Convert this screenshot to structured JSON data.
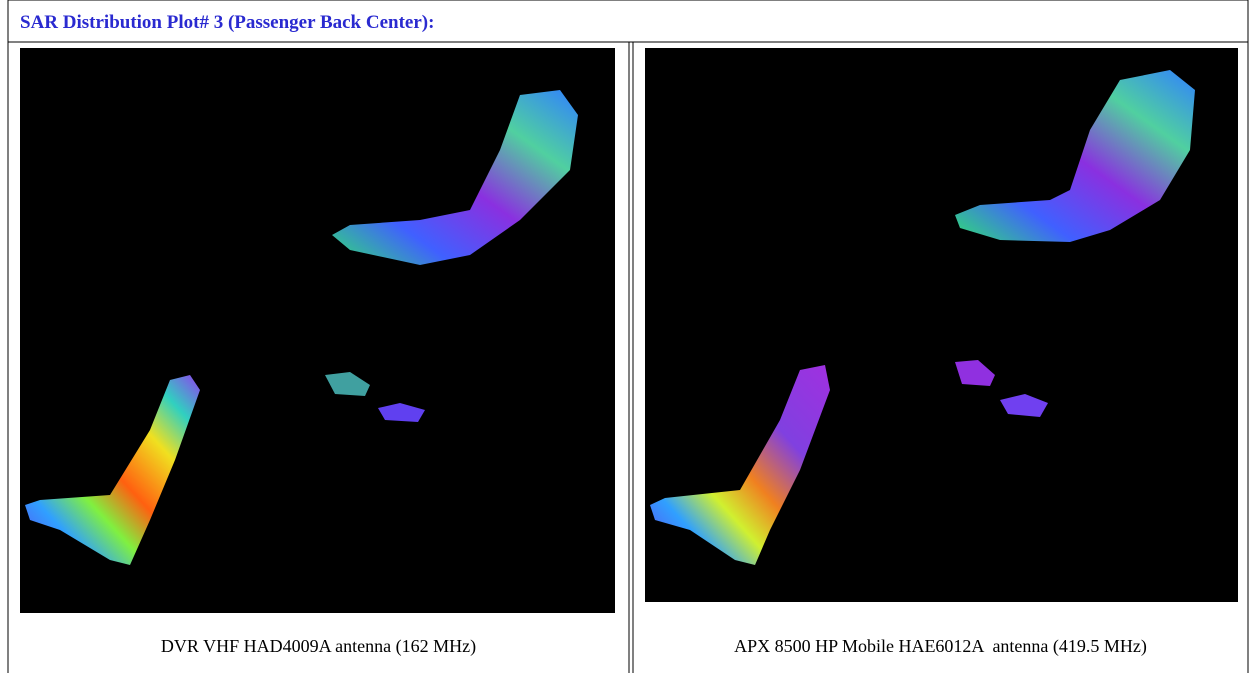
{
  "header": {
    "title": "SAR Distribution Plot# 3 (Passenger Back Center):"
  },
  "table": {
    "rows": [
      [
        "DVR VHF HAD4009A antenna (162 MHz)",
        "APX 8500 HP Mobile HAE6012A  antenna (419.5 MHz)"
      ]
    ]
  }
}
